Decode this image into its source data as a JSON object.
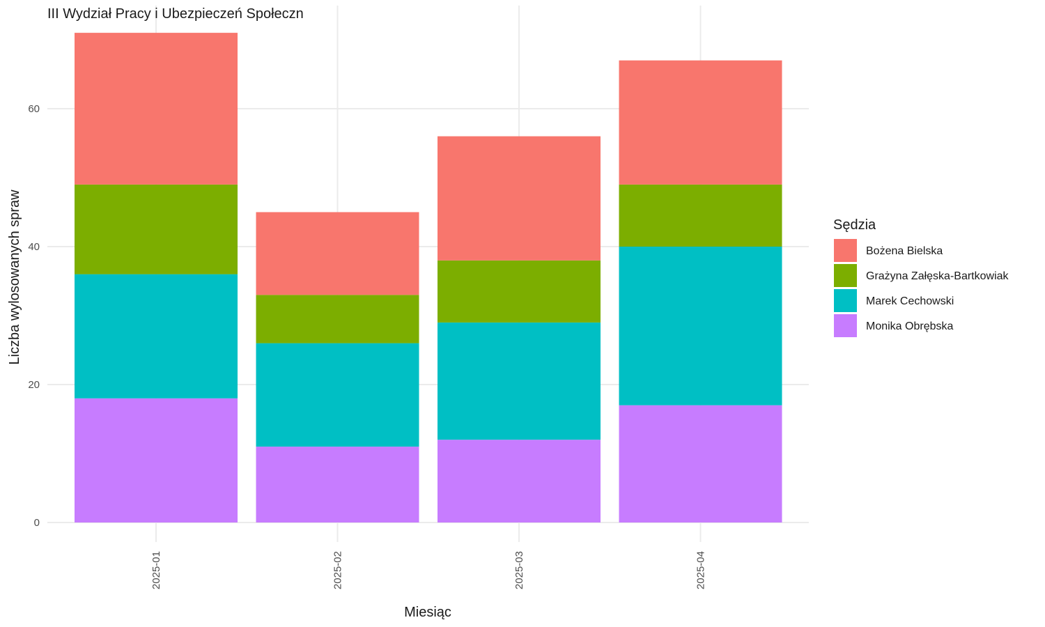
{
  "chart_data": {
    "type": "bar",
    "stacked": true,
    "title": "III Wydział Pracy i Ubezpieczeń Społeczn",
    "xlabel": "Miesiąc",
    "ylabel": "Liczba wylosowanych spraw",
    "categories": [
      "2025-01",
      "2025-02",
      "2025-03",
      "2025-04"
    ],
    "yticks": [
      0,
      20,
      40,
      60
    ],
    "ylim": [
      0,
      71
    ],
    "grid": true,
    "legend": {
      "title": "Sędzia",
      "position": "right"
    },
    "series": [
      {
        "name": "Monika Obrębska",
        "color": "#C77CFF",
        "values": [
          18,
          11,
          12,
          17
        ]
      },
      {
        "name": "Marek Cechowski",
        "color": "#00BFC4",
        "values": [
          18,
          15,
          17,
          23
        ]
      },
      {
        "name": "Grażyna Załęska-Bartkowiak",
        "color": "#7CAE00",
        "values": [
          13,
          7,
          9,
          9
        ]
      },
      {
        "name": "Bożena Bielska",
        "color": "#F8766D",
        "values": [
          22,
          12,
          18,
          18
        ]
      }
    ],
    "legend_order": [
      "Bożena Bielska",
      "Grażyna Załęska-Bartkowiak",
      "Marek Cechowski",
      "Monika Obrębska"
    ]
  }
}
